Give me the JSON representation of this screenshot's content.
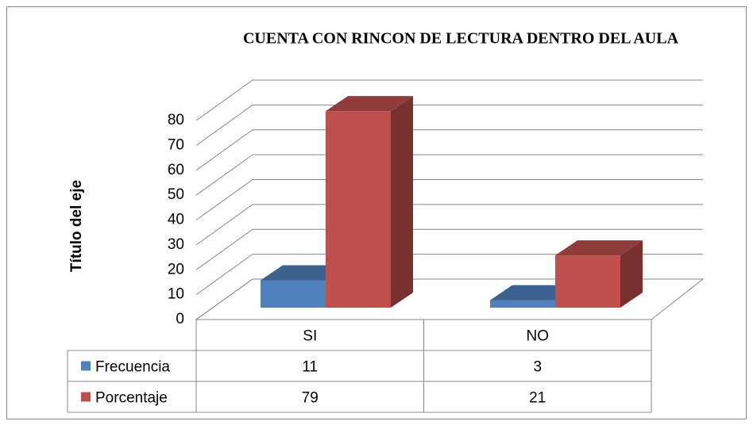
{
  "chart_data": {
    "type": "bar3d",
    "title": "CUENTA CON RINCON DE LECTURA DENTRO DEL AULA",
    "y_axis_label": "Título del eje",
    "categories": [
      "SI",
      "NO"
    ],
    "series": [
      {
        "name": "Frecuencia",
        "color": "#4f81bd",
        "values": [
          11,
          3
        ]
      },
      {
        "name": "Porcentaje",
        "color": "#c0504d",
        "values": [
          79,
          21
        ]
      }
    ],
    "ylim": [
      0,
      80
    ],
    "yticks": [
      0,
      10,
      20,
      30,
      40,
      50,
      60,
      70,
      80
    ],
    "grid": true,
    "data_table": true
  }
}
